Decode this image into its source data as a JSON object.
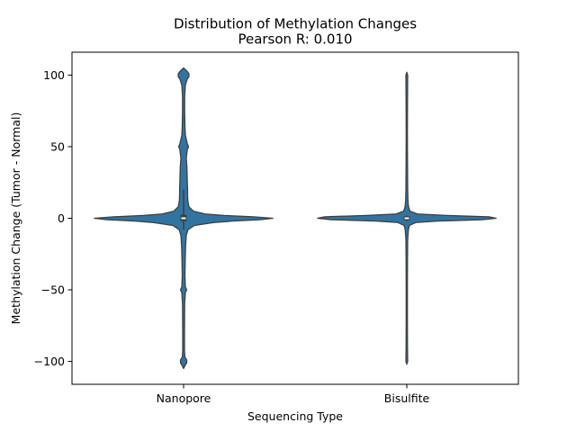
{
  "chart_data": {
    "type": "violin",
    "title": "Distribution of Methylation Changes",
    "subtitle": "Pearson R: 0.010",
    "xlabel": "Sequencing Type",
    "ylabel": "Methylation Change (Tumor - Normal)",
    "categories": [
      "Nanopore",
      "Bisulfite"
    ],
    "ylim": [
      -116,
      116
    ],
    "yticks": [
      -100,
      -50,
      0,
      50,
      100
    ],
    "ytick_labels": [
      "−100",
      "−50",
      "0",
      "50",
      "100"
    ],
    "grid": false,
    "color": "#3274a1",
    "edge_color": "#3d3d3d",
    "series": [
      {
        "category": "Nanopore",
        "median": 0,
        "q1": -1,
        "q3": 1.5,
        "whisker_low": -8,
        "whisker_high": 20,
        "min": -105,
        "max": 105,
        "density": [
          [
            -105,
            0.0
          ],
          [
            -103,
            0.015
          ],
          [
            -101,
            0.035
          ],
          [
            -99,
            0.035
          ],
          [
            -97,
            0.015
          ],
          [
            -93,
            0.01
          ],
          [
            -80,
            0.01
          ],
          [
            -60,
            0.012
          ],
          [
            -52,
            0.02
          ],
          [
            -50,
            0.035
          ],
          [
            -48,
            0.02
          ],
          [
            -40,
            0.015
          ],
          [
            -30,
            0.018
          ],
          [
            -20,
            0.022
          ],
          [
            -12,
            0.03
          ],
          [
            -8,
            0.05
          ],
          [
            -5,
            0.12
          ],
          [
            -3,
            0.34
          ],
          [
            -2,
            0.55
          ],
          [
            -1,
            0.86
          ],
          [
            0,
            1.0
          ],
          [
            1,
            0.78
          ],
          [
            2,
            0.45
          ],
          [
            3,
            0.24
          ],
          [
            5,
            0.11
          ],
          [
            8,
            0.06
          ],
          [
            12,
            0.048
          ],
          [
            16,
            0.045
          ],
          [
            20,
            0.045
          ],
          [
            25,
            0.042
          ],
          [
            30,
            0.04
          ],
          [
            35,
            0.038
          ],
          [
            42,
            0.03
          ],
          [
            48,
            0.042
          ],
          [
            50,
            0.055
          ],
          [
            52,
            0.042
          ],
          [
            58,
            0.02
          ],
          [
            65,
            0.015
          ],
          [
            75,
            0.012
          ],
          [
            85,
            0.012
          ],
          [
            93,
            0.02
          ],
          [
            97,
            0.04
          ],
          [
            99,
            0.06
          ],
          [
            101,
            0.06
          ],
          [
            103,
            0.035
          ],
          [
            105,
            0.0
          ]
        ]
      },
      {
        "category": "Bisulfite",
        "median": 0,
        "q1": -0.5,
        "q3": 0.5,
        "whisker_low": -2,
        "whisker_high": 2,
        "min": -102,
        "max": 102,
        "density": [
          [
            -102,
            0.0
          ],
          [
            -100,
            0.01
          ],
          [
            -90,
            0.008
          ],
          [
            -70,
            0.007
          ],
          [
            -50,
            0.007
          ],
          [
            -30,
            0.008
          ],
          [
            -15,
            0.01
          ],
          [
            -8,
            0.018
          ],
          [
            -5,
            0.03
          ],
          [
            -3,
            0.1
          ],
          [
            -2,
            0.35
          ],
          [
            -1,
            0.85
          ],
          [
            0,
            1.0
          ],
          [
            1,
            0.92
          ],
          [
            2,
            0.45
          ],
          [
            3,
            0.12
          ],
          [
            5,
            0.035
          ],
          [
            8,
            0.02
          ],
          [
            12,
            0.013
          ],
          [
            20,
            0.01
          ],
          [
            40,
            0.008
          ],
          [
            60,
            0.007
          ],
          [
            80,
            0.008
          ],
          [
            100,
            0.01
          ],
          [
            102,
            0.0
          ]
        ]
      }
    ]
  }
}
